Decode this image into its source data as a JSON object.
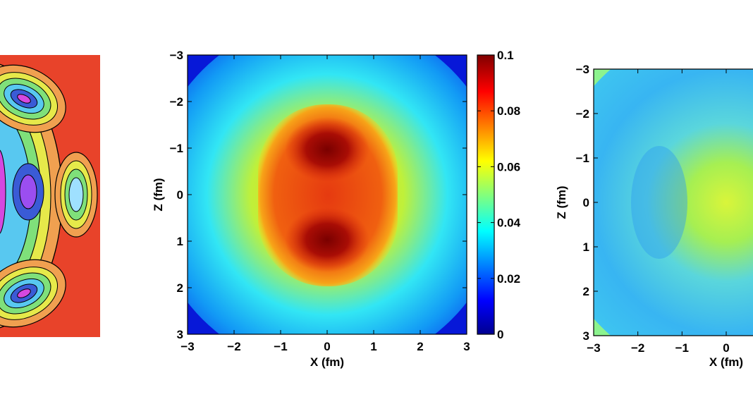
{
  "chart_data": [
    {
      "type": "heatmap",
      "panel": "left-contour-partial",
      "style": "filled-contour",
      "colors": {
        "background": "#e8432a",
        "lobe_outer": "#f0a050",
        "lobe_mid": "#9fe0ff",
        "lobe_inner": "#3a5bd6",
        "lobe_core": "#d548e0"
      }
    },
    {
      "type": "heatmap",
      "panel": "center",
      "xlabel": "X (fm)",
      "ylabel": "Z (fm)",
      "xlim": [
        -3,
        3
      ],
      "ylim": [
        -3,
        3
      ],
      "x_ticks": [
        "-3",
        "-2",
        "-1",
        "0",
        "1",
        "2",
        "3"
      ],
      "y_ticks": [
        "-3",
        "-2",
        "-1",
        "0",
        "1",
        "2",
        "3"
      ],
      "y_axis_reversed": true,
      "colorbar": {
        "range": [
          0,
          0.1
        ],
        "ticks": [
          "0",
          "0.02",
          "0.04",
          "0.06",
          "0.08",
          "0.1"
        ],
        "colormap": "jet"
      },
      "density_peaks": [
        {
          "x": 0,
          "z": -1,
          "value": 0.1
        },
        {
          "x": 0,
          "z": 1,
          "value": 0.1
        }
      ]
    },
    {
      "type": "heatmap",
      "panel": "right-partial",
      "xlabel": "X (fm)",
      "ylabel": "Z (fm)",
      "xlim": [
        -3,
        3
      ],
      "ylim": [
        -3,
        3
      ],
      "x_ticks_visible": [
        "-3",
        "-2",
        "-1",
        "0"
      ],
      "y_ticks": [
        "-3",
        "-2",
        "-1",
        "0",
        "1",
        "2",
        "3"
      ],
      "y_axis_reversed": true,
      "colors": {
        "center": "#d6f53a",
        "ring": "#33b8f5",
        "outer": "#7cf09a"
      }
    }
  ]
}
